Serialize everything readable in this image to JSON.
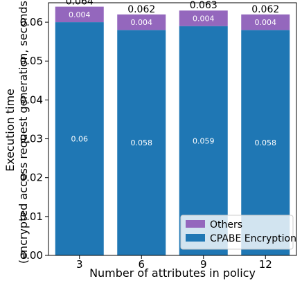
{
  "chart_data": {
    "type": "bar",
    "stacked": true,
    "categories": [
      "3",
      "6",
      "9",
      "12"
    ],
    "series": [
      {
        "name": "CPABE Encryption",
        "values": [
          0.06,
          0.058,
          0.059,
          0.058
        ],
        "labels": [
          "0.06",
          "0.058",
          "0.059",
          "0.058"
        ],
        "color": "#1f77b4"
      },
      {
        "name": "Others",
        "values": [
          0.004,
          0.004,
          0.004,
          0.004
        ],
        "labels": [
          "0.004",
          "0.004",
          "0.004",
          "0.004"
        ],
        "color": "#9467bd"
      }
    ],
    "totals": [
      0.064,
      0.062,
      0.063,
      0.062
    ],
    "total_labels": [
      "0.064",
      "0.062",
      "0.063",
      "0.062"
    ],
    "xlabel": "Number of attributes in policy",
    "ylabel_lines": [
      "Execution time",
      "(encrypted access request generation, seconds)"
    ],
    "ylim": [
      0,
      0.065
    ],
    "yticks": [
      "0.00",
      "0.01",
      "0.02",
      "0.03",
      "0.04",
      "0.05",
      "0.06"
    ],
    "grid": false,
    "legend_position": "lower-right",
    "legend_order": [
      "Others",
      "CPABE Encryption"
    ]
  }
}
